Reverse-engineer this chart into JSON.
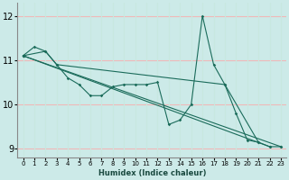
{
  "xlabel": "Humidex (Indice chaleur)",
  "ylabel": "",
  "xlim": [
    -0.5,
    23.5
  ],
  "ylim": [
    8.8,
    12.3
  ],
  "yticks": [
    9,
    10,
    11,
    12
  ],
  "xticks": [
    0,
    1,
    2,
    3,
    4,
    5,
    6,
    7,
    8,
    9,
    10,
    11,
    12,
    13,
    14,
    15,
    16,
    17,
    18,
    19,
    20,
    21,
    22,
    23
  ],
  "bg_color": "#cceae8",
  "line_color": "#1a6b5a",
  "grid_color_h": "#f0b8b8",
  "grid_color_v": "#c8e8e0",
  "series": [
    {
      "x": [
        0,
        1,
        2,
        3,
        4,
        5,
        6,
        7,
        8,
        9,
        10,
        11,
        12,
        13,
        14,
        15,
        16,
        17,
        18,
        19,
        20,
        21,
        22,
        23
      ],
      "y": [
        11.1,
        11.3,
        11.2,
        10.9,
        10.6,
        10.45,
        10.2,
        10.2,
        10.4,
        10.45,
        10.45,
        10.45,
        10.5,
        9.55,
        9.65,
        10.0,
        12.0,
        10.9,
        10.45,
        9.8,
        9.2,
        9.15,
        9.05,
        9.05
      ]
    },
    {
      "x": [
        0,
        2,
        3,
        18,
        21
      ],
      "y": [
        11.1,
        11.2,
        10.9,
        10.45,
        9.15
      ]
    },
    {
      "x": [
        0,
        22
      ],
      "y": [
        11.1,
        9.05
      ]
    },
    {
      "x": [
        0,
        23
      ],
      "y": [
        11.1,
        9.05
      ]
    }
  ]
}
